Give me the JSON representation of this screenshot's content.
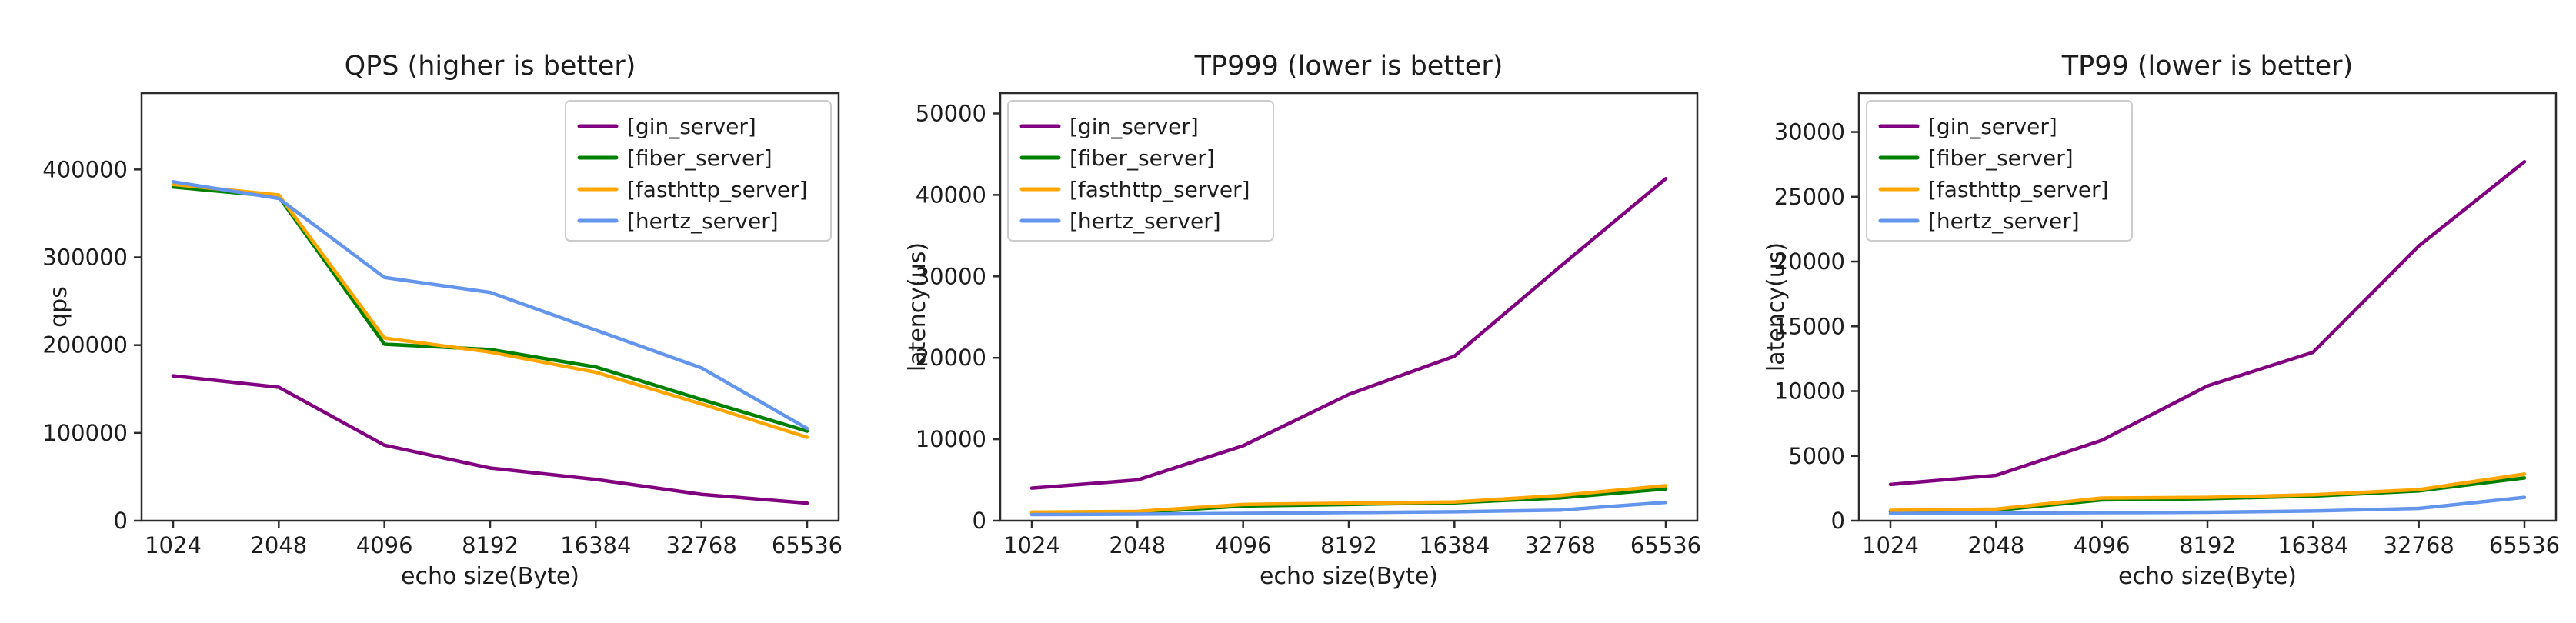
{
  "page": {
    "background": "#ffffff",
    "axis_color": "#2b2b2b",
    "legend_border_color": "#cccccc",
    "legend_background": "#ffffff"
  },
  "chart_data": [
    {
      "type": "line",
      "title": "QPS (higher is better)",
      "xlabel": "echo size(Byte)",
      "ylabel": "qps",
      "categories": [
        "1024",
        "2048",
        "4096",
        "8192",
        "16384",
        "32768",
        "65536"
      ],
      "ylim": [
        0,
        487000
      ],
      "yticks": [
        0,
        100000,
        200000,
        300000,
        400000
      ],
      "grid": false,
      "legend_position": "upper-right",
      "series": [
        {
          "name": "[gin_server]",
          "color": "#800080",
          "values": [
            165000,
            152000,
            86000,
            60000,
            47000,
            30000,
            20000
          ]
        },
        {
          "name": "[fiber_server]",
          "color": "#008000",
          "values": [
            380000,
            369000,
            201000,
            195000,
            175000,
            138000,
            102000
          ]
        },
        {
          "name": "[fasthttp_server]",
          "color": "#FFA500",
          "values": [
            383000,
            371000,
            208000,
            192000,
            169000,
            133000,
            95000
          ]
        },
        {
          "name": "[hertz_server]",
          "color": "#6495ED",
          "values": [
            386000,
            367000,
            277000,
            260000,
            217000,
            174000,
            105000
          ]
        }
      ]
    },
    {
      "type": "line",
      "title": "TP999 (lower is better)",
      "xlabel": "echo size(Byte)",
      "ylabel": "latency(us)",
      "categories": [
        "1024",
        "2048",
        "4096",
        "8192",
        "16384",
        "32768",
        "65536"
      ],
      "ylim": [
        0,
        52500
      ],
      "yticks": [
        0,
        10000,
        20000,
        30000,
        40000,
        50000
      ],
      "grid": false,
      "legend_position": "upper-left",
      "series": [
        {
          "name": "[gin_server]",
          "color": "#800080",
          "values": [
            4000,
            5000,
            9200,
            15500,
            20200,
            31200,
            42000
          ]
        },
        {
          "name": "[fiber_server]",
          "color": "#008000",
          "values": [
            900,
            1000,
            1800,
            2000,
            2200,
            2800,
            3900
          ]
        },
        {
          "name": "[fasthttp_server]",
          "color": "#FFA500",
          "values": [
            1050,
            1150,
            2000,
            2150,
            2300,
            3100,
            4300
          ]
        },
        {
          "name": "[hertz_server]",
          "color": "#6495ED",
          "values": [
            750,
            800,
            900,
            1000,
            1100,
            1300,
            2250
          ]
        }
      ]
    },
    {
      "type": "line",
      "title": "TP99 (lower is better)",
      "xlabel": "echo size(Byte)",
      "ylabel": "latency(us)",
      "categories": [
        "1024",
        "2048",
        "4096",
        "8192",
        "16384",
        "32768",
        "65536"
      ],
      "ylim": [
        0,
        33000
      ],
      "yticks": [
        0,
        5000,
        10000,
        15000,
        20000,
        25000,
        30000
      ],
      "grid": false,
      "legend_position": "upper-left",
      "series": [
        {
          "name": "[gin_server]",
          "color": "#800080",
          "values": [
            2800,
            3500,
            6200,
            10400,
            13000,
            21200,
            27700
          ]
        },
        {
          "name": "[fiber_server]",
          "color": "#008000",
          "values": [
            700,
            800,
            1600,
            1700,
            1900,
            2300,
            3300
          ]
        },
        {
          "name": "[fasthttp_server]",
          "color": "#FFA500",
          "values": [
            800,
            900,
            1750,
            1800,
            2000,
            2400,
            3600
          ]
        },
        {
          "name": "[hertz_server]",
          "color": "#6495ED",
          "values": [
            550,
            600,
            620,
            650,
            750,
            950,
            1800
          ]
        }
      ]
    }
  ]
}
